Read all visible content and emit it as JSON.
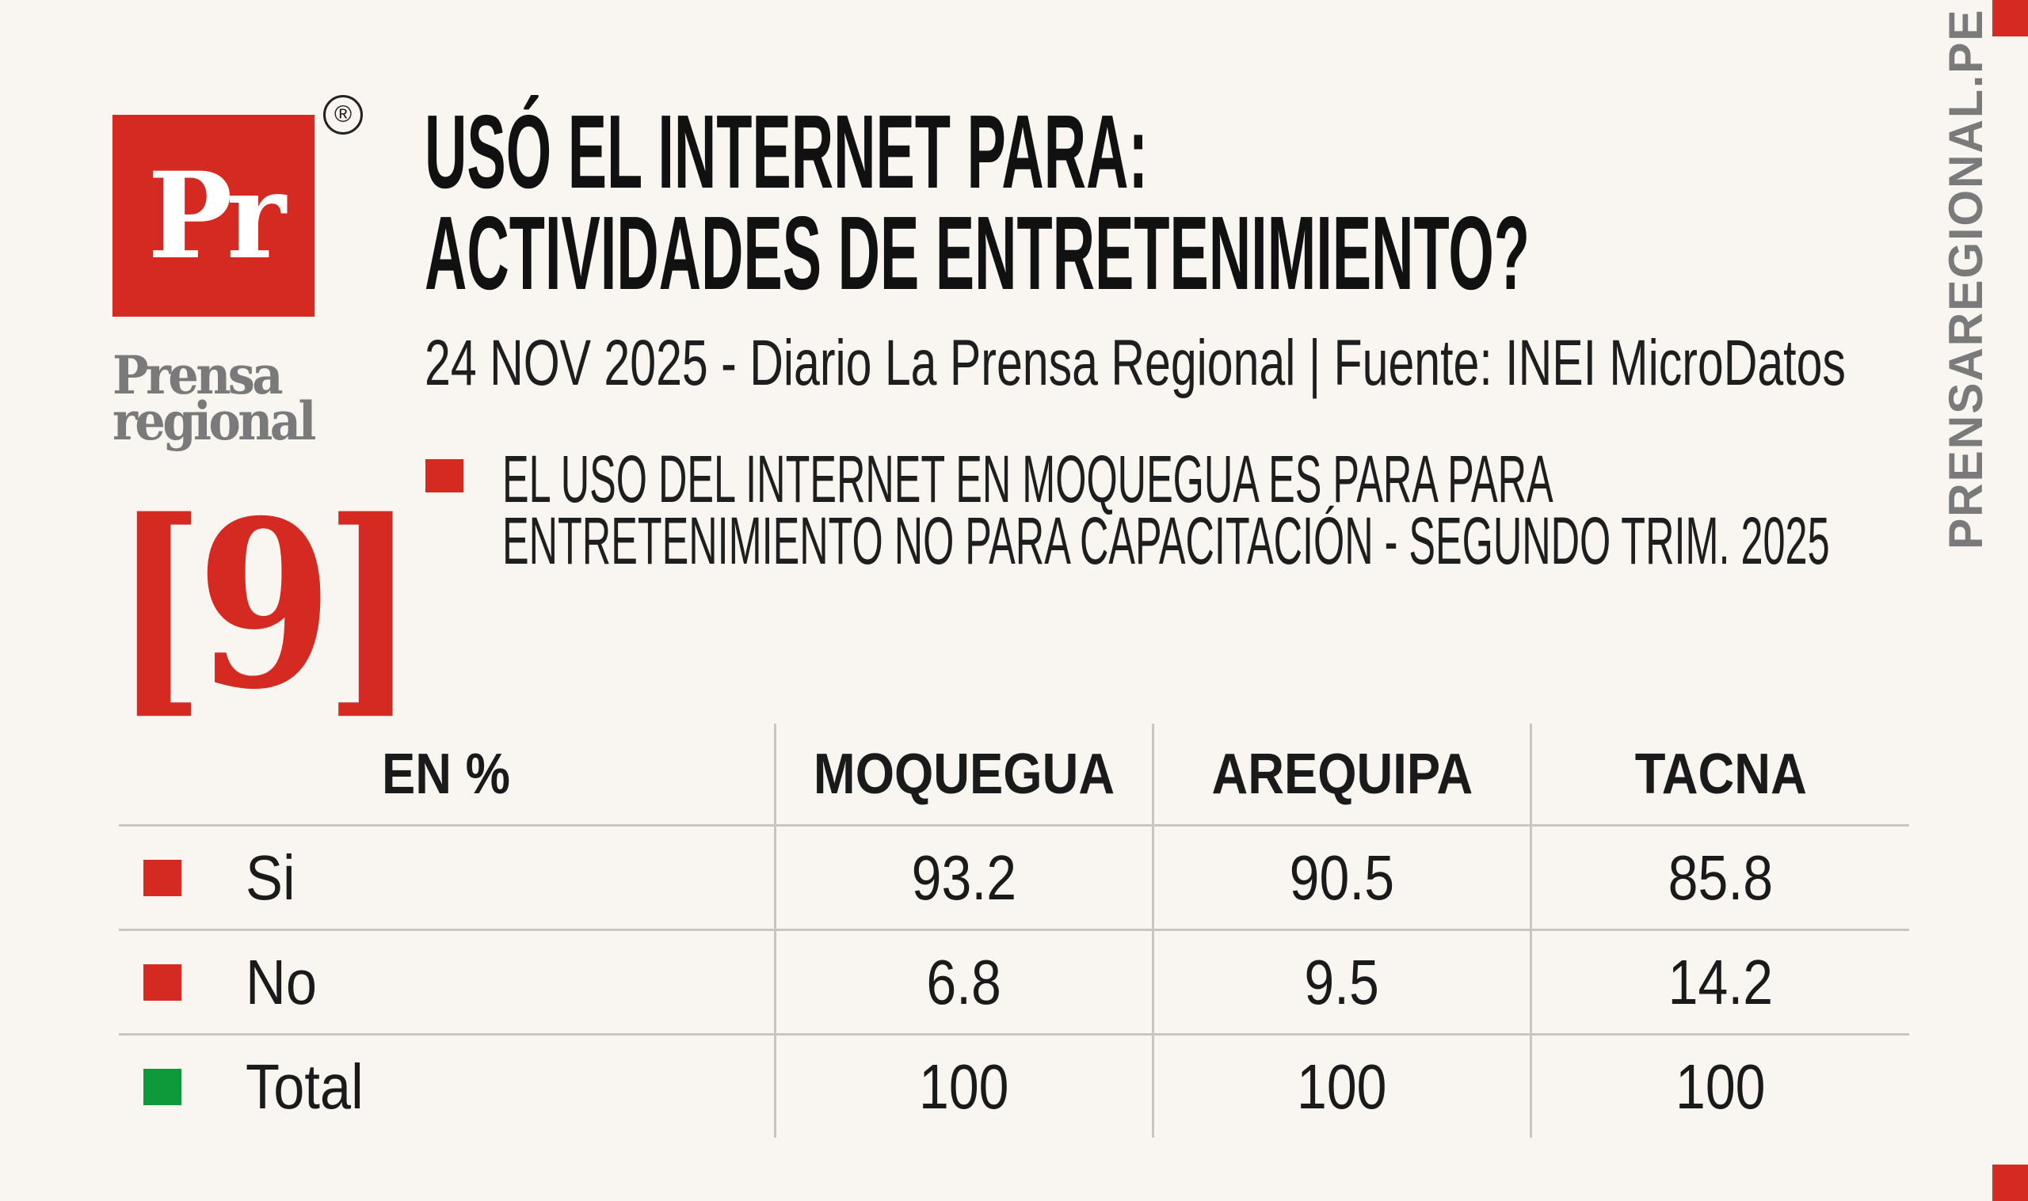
{
  "brand": {
    "logo_text": "Pr",
    "registered": "®",
    "name_line1": "Prensa",
    "name_line2": "regional",
    "issue": "[9]",
    "site": "PRENSAREGIONAL.PE"
  },
  "title": {
    "line1": "USÓ EL INTERNET PARA:",
    "line2": "ACTIVIDADES DE ENTRETENIMIENTO?"
  },
  "subtitle": "24 NOV 2025 - Diario La Prensa Regional | Fuente: INEI MicroDatos",
  "note": {
    "line1": "EL USO DEL INTERNET EN MOQUEGUA ES PARA PARA",
    "line2": "ENTRETENIMIENTO NO PARA CAPACITACIÓN - SEGUNDO TRIM. 2025"
  },
  "colors": {
    "accent": "#d42a21",
    "total": "#0e9a3a",
    "gray": "#7a7a7a",
    "background": "#f9f6f1"
  },
  "table": {
    "headers": [
      "EN %",
      "MOQUEGUA",
      "AREQUIPA",
      "TACNA"
    ],
    "rows": [
      {
        "label": "Si",
        "marker": "#d42a21",
        "values": [
          "93.2",
          "90.5",
          "85.8"
        ]
      },
      {
        "label": "No",
        "marker": "#d42a21",
        "values": [
          "6.8",
          "9.5",
          "14.2"
        ]
      },
      {
        "label": "Total",
        "marker": "#0e9a3a",
        "values": [
          "100",
          "100",
          "100"
        ]
      }
    ]
  }
}
